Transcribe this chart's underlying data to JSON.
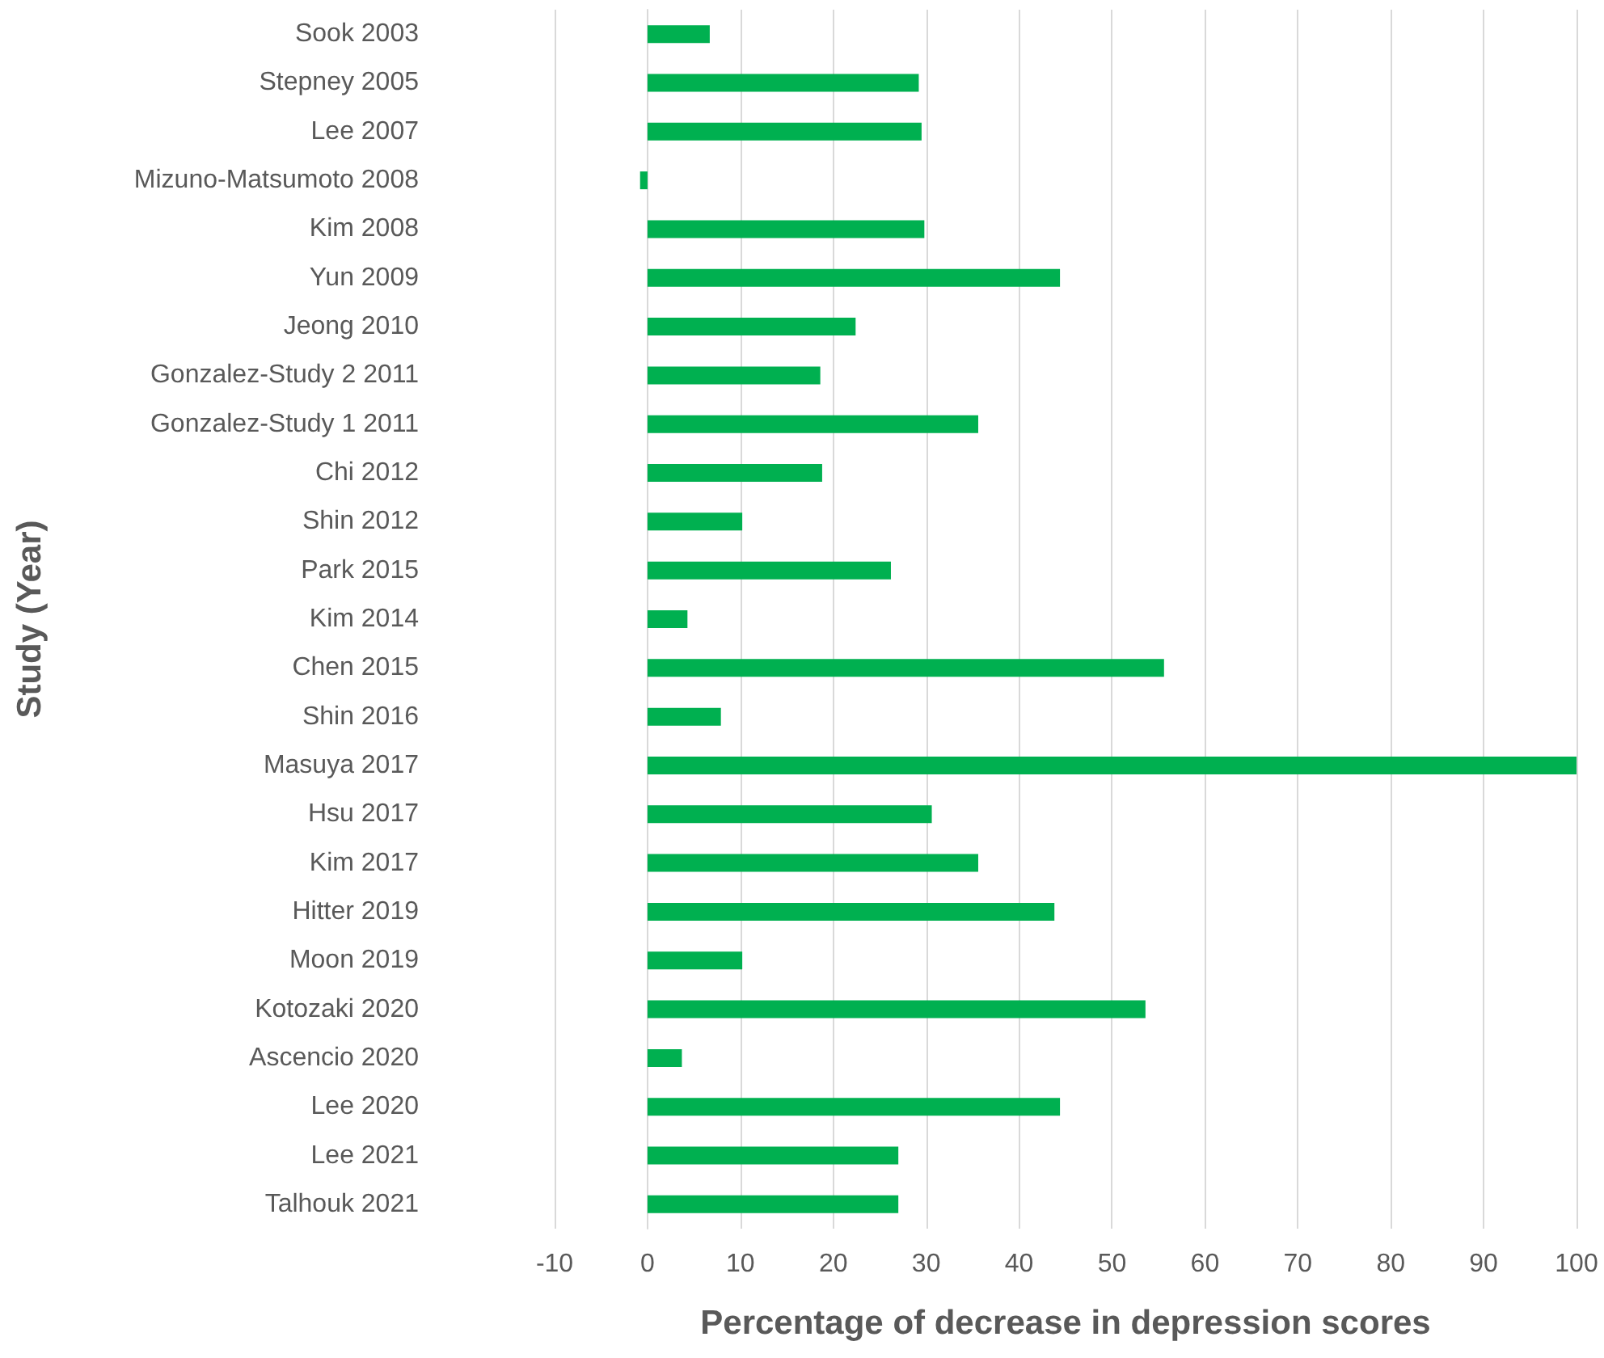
{
  "chart_data": {
    "type": "bar",
    "orientation": "horizontal",
    "xlabel": "Percentage of decrease in depression scores",
    "ylabel": "Study (Year)",
    "categories": [
      "Sook 2003",
      "Stepney 2005",
      "Lee 2007",
      "Mizuno-Matsumoto 2008",
      "Kim 2008",
      "Yun 2009",
      "Jeong 2010",
      "Gonzalez-Study 2 2011",
      "Gonzalez-Study 1 2011",
      "Chi 2012",
      "Shin 2012",
      "Park 2015",
      "Kim 2014",
      "Chen 2015",
      "Shin 2016",
      "Masuya 2017",
      "Hsu 2017",
      "Kim 2017",
      "Hitter 2019",
      "Moon 2019",
      "Kotozaki 2020",
      "Ascencio 2020",
      "Lee 2020",
      "Lee 2021",
      "Talhouk 2021"
    ],
    "values": [
      6.7,
      29.2,
      29.5,
      -0.8,
      29.8,
      44.4,
      22.4,
      18.6,
      35.6,
      18.8,
      10.2,
      26.2,
      4.3,
      55.6,
      7.9,
      100,
      30.6,
      35.6,
      43.8,
      10.2,
      53.6,
      3.7,
      44.4,
      27,
      27
    ],
    "color": "#00b050",
    "xlim": [
      -10,
      100
    ],
    "xticks": [
      -10,
      0,
      10,
      20,
      30,
      40,
      50,
      60,
      70,
      80,
      90,
      100
    ],
    "grid": "x"
  }
}
